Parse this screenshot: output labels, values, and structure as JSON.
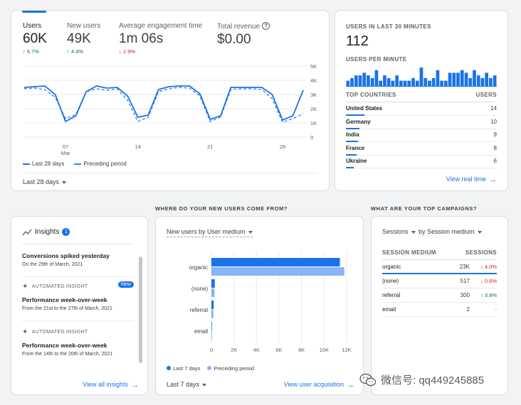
{
  "overview": {
    "metrics": [
      {
        "label": "Users",
        "value": "60K",
        "change": "6.7%",
        "dir": "up"
      },
      {
        "label": "New users",
        "value": "49K",
        "change": "4.4%",
        "dir": "up"
      },
      {
        "label": "Average engagement time",
        "value": "1m 06s",
        "change": "1.9%",
        "dir": "down"
      },
      {
        "label": "Total revenue",
        "value": "$0.00",
        "change": "",
        "dir": ""
      }
    ],
    "legend_current": "Last 28 days",
    "legend_previous": "Preceding period",
    "date_range": "Last 28 days"
  },
  "chart_data": [
    {
      "type": "line",
      "x_ticks": [
        "07\nMar",
        "14",
        "21",
        "28"
      ],
      "y_ticks": [
        "5K",
        "4K",
        "3K",
        "2K",
        "1K",
        "0"
      ],
      "ylim": [
        0,
        5000
      ],
      "series": [
        {
          "name": "Last 28 days",
          "values": [
            3500,
            3550,
            3600,
            3000,
            1100,
            1500,
            3200,
            3600,
            3450,
            3500,
            2900,
            1400,
            1550,
            3350,
            3550,
            3600,
            3600,
            3050,
            1250,
            1500,
            3500,
            3500,
            3500,
            3500,
            3000,
            1200,
            1500,
            3300
          ]
        },
        {
          "name": "Preceding period",
          "values": [
            3400,
            3450,
            3350,
            2800,
            1300,
            1600,
            3200,
            3400,
            3300,
            3400,
            2600,
            1100,
            1400,
            3200,
            3400,
            3500,
            3450,
            2900,
            1100,
            1400,
            3350,
            3400,
            3400,
            3350,
            2700,
            1050,
            1300,
            1650
          ]
        }
      ]
    },
    {
      "type": "bar",
      "title": "New users by User medium",
      "categories": [
        "organic",
        "(none)",
        "referral",
        "email"
      ],
      "x_ticks": [
        "0",
        "2K",
        "4K",
        "6K",
        "8K",
        "10K",
        "12K"
      ],
      "xlim": [
        0,
        12000
      ],
      "series": [
        {
          "name": "Last 7 days",
          "values": [
            11400,
            300,
            200,
            30
          ]
        },
        {
          "name": "Preceding period",
          "values": [
            11800,
            280,
            180,
            25
          ]
        }
      ]
    },
    {
      "type": "bar",
      "title": "USERS PER MINUTE",
      "values": [
        2,
        3,
        4,
        4,
        5,
        4,
        3,
        6,
        2,
        4,
        3,
        2,
        4,
        2,
        2,
        2,
        3,
        2,
        7,
        3,
        2,
        3,
        6,
        2,
        2,
        5,
        5,
        5,
        6,
        5,
        3,
        6,
        4,
        3,
        5,
        3,
        4
      ]
    }
  ],
  "realtime": {
    "title": "USERS IN LAST 30 MINUTES",
    "count": "112",
    "per_minute": "USERS PER MINUTE",
    "countries_header": "TOP COUNTRIES",
    "users_header": "USERS",
    "countries": [
      {
        "name": "United States",
        "value": "14",
        "share": 1.0
      },
      {
        "name": "Germany",
        "value": "10",
        "share": 0.72
      },
      {
        "name": "India",
        "value": "9",
        "share": 0.64
      },
      {
        "name": "France",
        "value": "8",
        "share": 0.57
      },
      {
        "name": "Ukraine",
        "value": "6",
        "share": 0.43
      }
    ],
    "link": "View real time"
  },
  "acquisition": {
    "heading": "WHERE DO YOUR NEW USERS COME FROM?",
    "selector": "New users by User medium",
    "legend_current": "Last 7 days",
    "legend_previous": "Preceding period",
    "date_range": "Last 7 days",
    "link": "View user acquisition"
  },
  "insights": {
    "title": "Insights",
    "count": "1",
    "items": [
      {
        "tag": "",
        "title": "Conversions spiked yesterday",
        "sub": "On the 29th of March, 2021",
        "badge": ""
      },
      {
        "tag": "AUTOMATED INSIGHT",
        "title": "Performance week-over-week",
        "sub": "From the 21st to the 27th of March, 2021",
        "badge": "New"
      },
      {
        "tag": "AUTOMATED INSIGHT",
        "title": "Performance week-over-week",
        "sub": "From the 14th to the 20th of March, 2021",
        "badge": ""
      }
    ],
    "link": "View all insights"
  },
  "campaigns": {
    "heading": "WHAT ARE YOUR TOP CAMPAIGNS?",
    "selector_metric": "Sessions",
    "selector_dim": "by Session medium",
    "col_medium": "SESSION MEDIUM",
    "col_sessions": "SESSIONS",
    "rows": [
      {
        "name": "organic",
        "value": "23K",
        "change": "4.0%",
        "dir": "down"
      },
      {
        "name": "(none)",
        "value": "517",
        "change": "0.6%",
        "dir": "down"
      },
      {
        "name": "referral",
        "value": "300",
        "change": "3.8%",
        "dir": "up"
      },
      {
        "name": "email",
        "value": "2",
        "change": "-",
        "dir": ""
      }
    ]
  },
  "watermark": "微信号: qq449245885",
  "colors": {
    "accent": "#1a73e8",
    "accent_light": "#8ab4f8",
    "up": "#137333",
    "down": "#c5221f"
  }
}
